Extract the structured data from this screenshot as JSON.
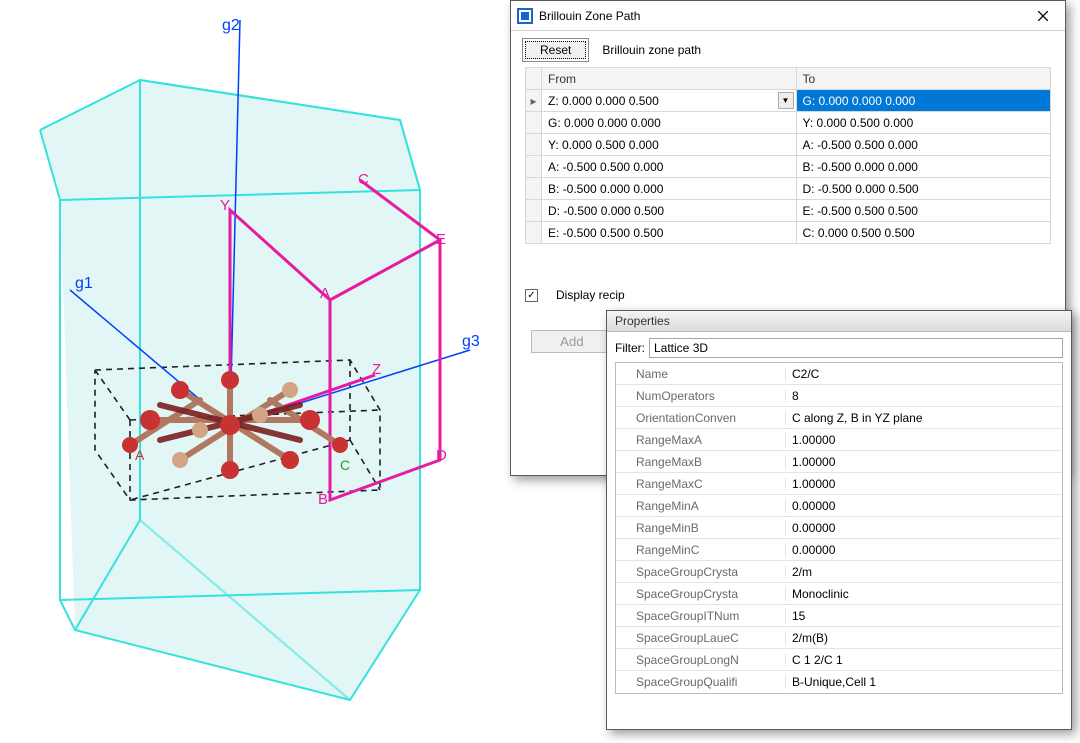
{
  "colors": {
    "accent_blue": "#0078d7",
    "cell_edge": "#36e1de",
    "cell_fill": "#a9e4e2",
    "axis_line": "#0040ff",
    "path_line": "#e61ba1",
    "atom_red": "#c83232",
    "atom_tan": "#d2a585",
    "dash_color": "#202020",
    "label_green": "#2aa02a"
  },
  "viewport": {
    "axis_labels": {
      "g1": "g1",
      "g2": "g2",
      "g3": "g3"
    },
    "path_vert_labels": {
      "A": "A",
      "B": "B",
      "C": "C",
      "D": "D",
      "E": "E",
      "Y": "Y",
      "Z": "Z"
    },
    "secondary_labels": {
      "Al": "A",
      "Bl": "B",
      "Cl": "C"
    },
    "line_width_cell": 2,
    "line_width_axis": 1.5,
    "line_width_path": 3
  },
  "bzp": {
    "title": "Brillouin Zone Path",
    "reset_label": "Reset",
    "section_label": "Brillouin zone path",
    "col_from": "From",
    "col_to": "To",
    "rows": [
      {
        "from": "Z:  0.000  0.000  0.500",
        "to": "G:  0.000  0.000  0.000",
        "selected": true
      },
      {
        "from": "G:  0.000  0.000  0.000",
        "to": "Y:  0.000  0.500  0.000"
      },
      {
        "from": "Y:  0.000  0.500  0.000",
        "to": "A:  -0.500  0.500  0.000"
      },
      {
        "from": "A:  -0.500  0.500  0.000",
        "to": "B:  -0.500  0.000  0.000"
      },
      {
        "from": "B:  -0.500  0.000  0.000",
        "to": "D:  -0.500  0.000  0.500"
      },
      {
        "from": "D:  -0.500  0.000  0.500",
        "to": "E:  -0.500  0.500  0.500"
      },
      {
        "from": "E:  -0.500  0.500  0.500",
        "to": "C:  0.000  0.500  0.500"
      }
    ],
    "display_recip_label": "Display recip",
    "display_recip_checked": true,
    "add_label": "Add"
  },
  "props": {
    "pane_title": "Properties",
    "filter_label": "Filter:",
    "filter_value": "Lattice 3D",
    "rows": [
      {
        "name": "Name",
        "value": "C2/C"
      },
      {
        "name": "NumOperators",
        "value": "8"
      },
      {
        "name": "OrientationConven",
        "value": "C along Z, B in YZ plane"
      },
      {
        "name": "RangeMaxA",
        "value": "1.00000"
      },
      {
        "name": "RangeMaxB",
        "value": "1.00000"
      },
      {
        "name": "RangeMaxC",
        "value": "1.00000"
      },
      {
        "name": "RangeMinA",
        "value": "0.00000"
      },
      {
        "name": "RangeMinB",
        "value": "0.00000"
      },
      {
        "name": "RangeMinC",
        "value": "0.00000"
      },
      {
        "name": "SpaceGroupCrysta",
        "value": "2/m"
      },
      {
        "name": "SpaceGroupCrysta",
        "value": "Monoclinic"
      },
      {
        "name": "SpaceGroupITNum",
        "value": "15"
      },
      {
        "name": "SpaceGroupLaueC",
        "value": "2/m(B)"
      },
      {
        "name": "SpaceGroupLongN",
        "value": "C 1 2/C 1"
      },
      {
        "name": "SpaceGroupQualifi",
        "value": "B-Unique,Cell 1"
      }
    ]
  }
}
